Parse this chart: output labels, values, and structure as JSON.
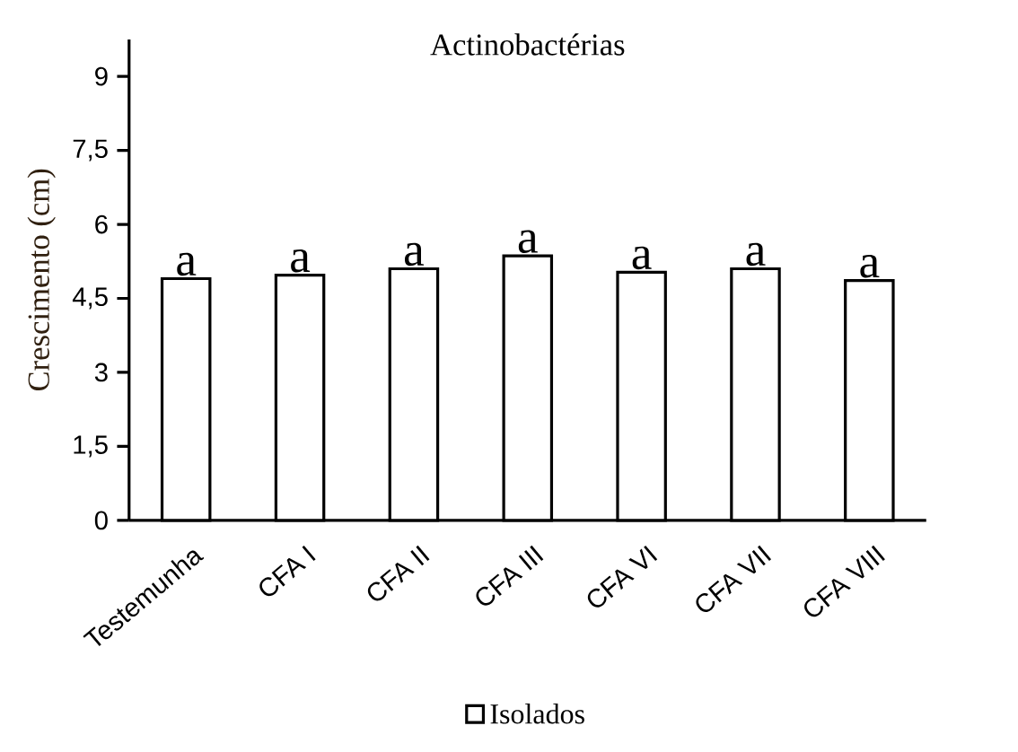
{
  "chart_data": {
    "type": "bar",
    "title": "Actinobactérias",
    "ylabel": "Crescimento  (cm)",
    "categories": [
      "Testemunha",
      "CFA I",
      "CFA II",
      "CFA III",
      "CFA VI",
      "CFA VII",
      "CFA VIII"
    ],
    "series": [
      {
        "name": "Isolados",
        "color": "#ffffff",
        "values": [
          4.9,
          4.97,
          5.1,
          5.36,
          5.03,
          5.1,
          4.86
        ]
      }
    ],
    "ylim": [
      0,
      9.75
    ],
    "yticks": [
      0,
      {
        "value": 1.5,
        "label": "1,5"
      },
      3,
      {
        "value": 4.5,
        "label": "4,5"
      },
      6,
      {
        "value": 7.5,
        "label": "7,5"
      },
      9
    ],
    "annotations": [
      {
        "text": "a",
        "x": "Testemunha",
        "y": 4.9
      },
      {
        "text": "a",
        "x": "CFA I",
        "y": 4.97
      },
      {
        "text": "a",
        "x": "CFA II",
        "y": 5.1
      },
      {
        "text": "a",
        "x": "CFA III",
        "y": 5.36
      },
      {
        "text": "a",
        "x": "CFA VI",
        "y": 5.03
      },
      {
        "text": "a",
        "x": "CFA VII",
        "y": 5.1
      },
      {
        "text": "a",
        "x": "CFA VIII",
        "y": 4.86
      }
    ],
    "legend": "bottom"
  }
}
